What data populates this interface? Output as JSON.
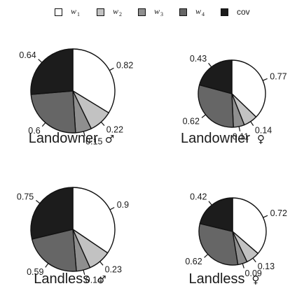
{
  "colors": {
    "w1": "#ffffff",
    "w2": "#c2c2c2",
    "w3": "#8f8f8f",
    "w4": "#666666",
    "cov": "#1c1c1c",
    "stroke": "#111111"
  },
  "legend": [
    {
      "key": "w1",
      "base": "w",
      "sub": "1"
    },
    {
      "key": "w2",
      "base": "w",
      "sub": "2"
    },
    {
      "key": "w3",
      "base": "w",
      "sub": "3"
    },
    {
      "key": "w4",
      "base": "w",
      "sub": "4"
    },
    {
      "key": "cov",
      "base": "cov",
      "sub": ""
    }
  ],
  "chart_data": [
    {
      "type": "pie",
      "title": "Landowner",
      "symbol": "♂",
      "categories": [
        "w1",
        "w2",
        "w3",
        "w4",
        "cov"
      ],
      "values": [
        0.82,
        0.22,
        0.15,
        0.6,
        0.64
      ]
    },
    {
      "type": "pie",
      "title": "Landowner",
      "symbol": "♀",
      "categories": [
        "w1",
        "w2",
        "w3",
        "w4",
        "cov"
      ],
      "values": [
        0.77,
        0.14,
        0.11,
        0.62,
        0.43
      ]
    },
    {
      "type": "pie",
      "title": "Landless",
      "symbol": "♂",
      "categories": [
        "w1",
        "w2",
        "w3",
        "w4",
        "cov"
      ],
      "values": [
        0.9,
        0.23,
        0.14,
        0.59,
        0.75
      ]
    },
    {
      "type": "pie",
      "title": "Landless",
      "symbol": "♀",
      "categories": [
        "w1",
        "w2",
        "w3",
        "w4",
        "cov"
      ],
      "values": [
        0.72,
        0.13,
        0.09,
        0.62,
        0.42
      ]
    }
  ]
}
